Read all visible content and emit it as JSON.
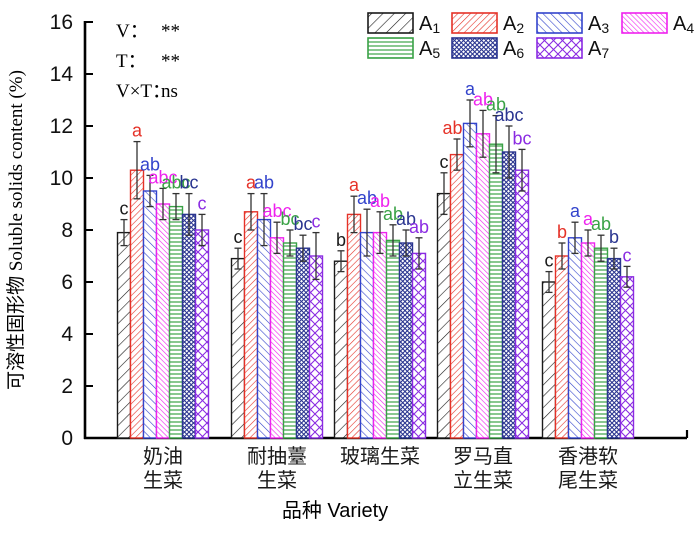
{
  "figure": {
    "background": "#ffffff",
    "stats_annotation": {
      "lines": [
        {
          "label": "V：",
          "value": "**"
        },
        {
          "label": "T：",
          "value": "**"
        },
        {
          "label": "V×T：",
          "value": "ns"
        }
      ]
    }
  },
  "chart_data": {
    "type": "bar",
    "title": "",
    "xlabel": "品种 Variety",
    "ylabel": "可溶性固形物 Soluble solids content (%)",
    "ylim": [
      0,
      16
    ],
    "ytick_step": 2,
    "yticks": [
      "0",
      "2",
      "4",
      "6",
      "8",
      "10",
      "12",
      "14",
      "16"
    ],
    "grid": false,
    "legend_position": "top-center-two-rows",
    "error_bar_color": "#333333",
    "axis_color": "#000000",
    "categories": [
      "奶油生菜",
      "耐抽薹生菜",
      "玻璃生菜",
      "罗马直立生菜",
      "香港软尾生菜"
    ],
    "category_label_lines": [
      [
        "奶油",
        "生菜"
      ],
      [
        "耐抽薹",
        "生菜"
      ],
      [
        "玻璃生菜"
      ],
      [
        "罗马直",
        "立生菜"
      ],
      [
        "香港软",
        "尾生菜"
      ]
    ],
    "series": [
      {
        "name": "A1",
        "label_base": "A",
        "label_sub": "1",
        "color": "#1a1a1a",
        "hatch": "diag-up",
        "hatch_spacing": 8,
        "values": [
          7.9,
          6.9,
          6.8,
          9.4,
          6.0
        ],
        "errors": [
          0.5,
          0.4,
          0.4,
          0.8,
          0.4
        ],
        "sig_letters": [
          "c",
          "c",
          "b",
          "c",
          "c"
        ]
      },
      {
        "name": "A2",
        "label_base": "A",
        "label_sub": "2",
        "color": "#e53228",
        "hatch": "diag-up",
        "hatch_spacing": 4.5,
        "values": [
          10.3,
          8.7,
          8.6,
          10.9,
          7.0
        ],
        "errors": [
          1.1,
          0.7,
          0.7,
          0.6,
          0.5
        ],
        "sig_letters": [
          "a",
          "a",
          "a",
          "abc",
          "b"
        ]
      },
      {
        "name": "A3",
        "label_base": "A",
        "label_sub": "3",
        "color": "#3344cc",
        "hatch": "diag-down",
        "hatch_spacing": 5.5,
        "values": [
          9.5,
          8.4,
          7.9,
          12.1,
          7.7
        ],
        "errors": [
          0.6,
          1.0,
          0.9,
          0.9,
          0.6
        ],
        "sig_letters": [
          "ab",
          "ab",
          "ab",
          "a",
          "a"
        ]
      },
      {
        "name": "A4",
        "label_base": "A",
        "label_sub": "4",
        "color": "#ee22ee",
        "hatch": "diag-down",
        "hatch_spacing": 3.6,
        "values": [
          9.0,
          7.7,
          7.9,
          11.7,
          7.5
        ],
        "errors": [
          0.6,
          0.6,
          0.8,
          0.9,
          0.5
        ],
        "sig_letters": [
          "abc",
          "abc",
          "ab",
          "ab",
          "a"
        ]
      },
      {
        "name": "A5",
        "label_base": "A",
        "label_sub": "5",
        "color": "#3aa246",
        "hatch": "horizontal",
        "hatch_spacing": 4,
        "values": [
          8.9,
          7.5,
          7.6,
          11.3,
          7.3
        ],
        "errors": [
          0.5,
          0.5,
          0.6,
          1.1,
          0.5
        ],
        "sig_letters": [
          "abc",
          "bc",
          "ab",
          "ab",
          "ab"
        ]
      },
      {
        "name": "A6",
        "label_base": "A",
        "label_sub": "6",
        "color": "#2a3590",
        "hatch": "cross",
        "hatch_spacing": 4.5,
        "values": [
          8.6,
          7.3,
          7.5,
          11.0,
          6.9
        ],
        "errors": [
          0.8,
          0.5,
          0.5,
          1.0,
          0.4
        ],
        "sig_letters": [
          "bc",
          "bc",
          "ab",
          "abc",
          "b"
        ]
      },
      {
        "name": "A7",
        "label_base": "A",
        "label_sub": "7",
        "color": "#8a2be2",
        "hatch": "cross",
        "hatch_spacing": 9,
        "values": [
          8.0,
          7.0,
          7.1,
          10.3,
          6.2
        ],
        "errors": [
          0.6,
          0.9,
          0.6,
          0.8,
          0.4
        ],
        "sig_letters": [
          "c",
          "c",
          "ab",
          "bc",
          "c"
        ]
      }
    ]
  }
}
